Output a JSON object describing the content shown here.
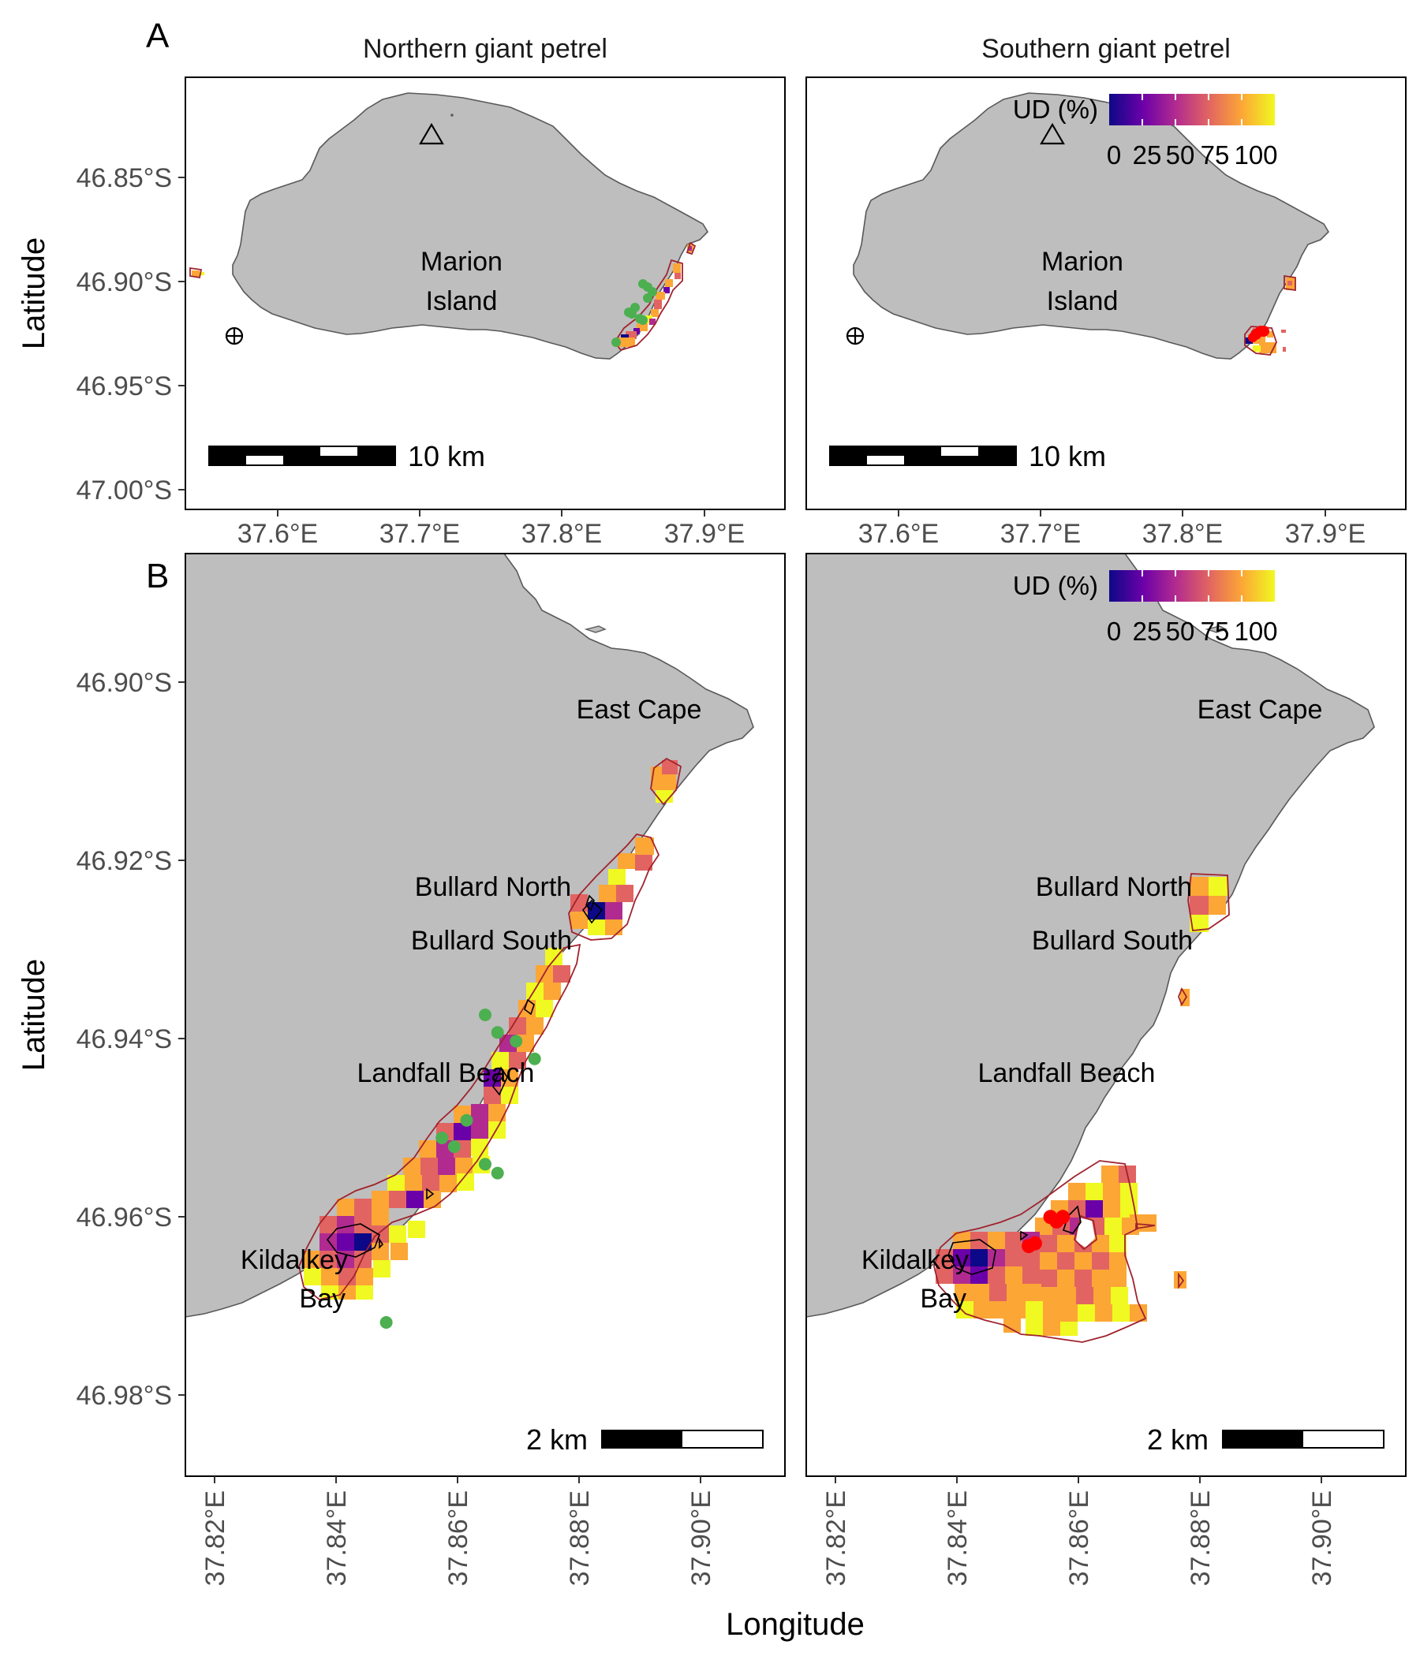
{
  "figure": {
    "tag_a": "A",
    "tag_b": "B",
    "x_axis_title": "Longitude",
    "y_axis_title": "Latitude"
  },
  "panels": {
    "northern_title": "Northern giant petrel",
    "southern_title": "Southern giant petrel"
  },
  "overview": {
    "lat_ticks": [
      "46.85°S",
      "46.90°S",
      "46.95°S",
      "47.00°S"
    ],
    "lon_ticks": [
      "37.6°E",
      "37.7°E",
      "37.8°E",
      "37.9°E"
    ],
    "island_label_line1": "Marion",
    "island_label_line2": "Island",
    "scale_label": "10 km"
  },
  "detail": {
    "lat_ticks": [
      "46.90°S",
      "46.92°S",
      "46.94°S",
      "46.96°S",
      "46.98°S"
    ],
    "lon_ticks": [
      "37.82°E",
      "37.84°E",
      "37.86°E",
      "37.88°E",
      "37.90°E"
    ],
    "scale_label": "2 km",
    "places": {
      "east_cape": "East Cape",
      "bullard_north": "Bullard North",
      "bullard_south": "Bullard South",
      "landfall_beach": "Landfall Beach",
      "kildalkey_line1": "Kildalkey",
      "kildalkey_line2": "Bay"
    }
  },
  "legend": {
    "title": "UD (%)",
    "ticks": [
      "0",
      "25",
      "50",
      "75",
      "100"
    ],
    "colors": [
      "#0d0887",
      "#6a00a8",
      "#b12a90",
      "#e16462",
      "#fca636",
      "#f0f921"
    ]
  },
  "colors": {
    "land": "#bebebe",
    "coast": "#595959",
    "ud_outer_contour": "#a0232d",
    "ud_inner_contour": "#000000",
    "northern_points": "#4caf50",
    "southern_points": "#ff0000"
  },
  "chart_data": {
    "type": "map",
    "overview_extent": {
      "lon": [
        37.55,
        37.95
      ],
      "lat": [
        -47.005,
        -46.805
      ]
    },
    "detail_extent": {
      "lon": [
        37.815,
        37.912
      ],
      "lat": [
        -46.99,
        -46.885
      ]
    },
    "northern_points": [
      [
        37.8635,
        -46.9375
      ],
      [
        37.8655,
        -46.9395
      ],
      [
        37.8685,
        -46.9405
      ],
      [
        37.8715,
        -46.9425
      ],
      [
        37.8605,
        -46.9495
      ],
      [
        37.8565,
        -46.9515
      ],
      [
        37.8585,
        -46.9525
      ],
      [
        37.8635,
        -46.9545
      ],
      [
        37.8655,
        -46.9555
      ],
      [
        37.8475,
        -46.9725
      ]
    ],
    "southern_points": [
      [
        37.8545,
        -46.9605
      ],
      [
        37.8565,
        -46.9605
      ],
      [
        37.8555,
        -46.961
      ],
      [
        37.852,
        -46.9635
      ],
      [
        37.851,
        -46.9638
      ]
    ]
  }
}
